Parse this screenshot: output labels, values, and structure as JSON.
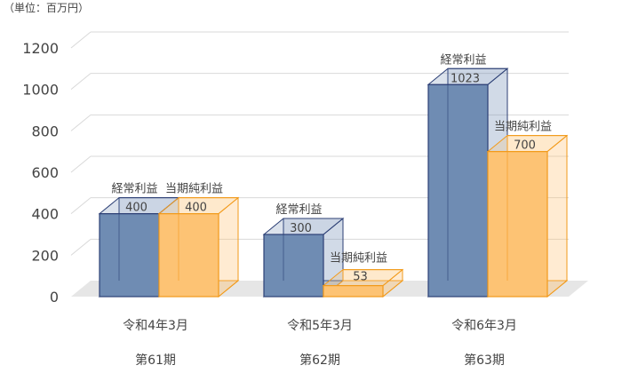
{
  "chart_data": {
    "type": "bar",
    "unit_label": "（単位：百万円）",
    "y_ticks": [
      "0",
      "200",
      "400",
      "600",
      "800",
      "1000",
      "1200"
    ],
    "ylim": [
      0,
      1200
    ],
    "grid": true,
    "categories": [
      {
        "line1": "令和4年3月",
        "line2": "第61期"
      },
      {
        "line1": "令和5年3月",
        "line2": "第62期"
      },
      {
        "line1": "令和6年3月",
        "line2": "第63期"
      }
    ],
    "series": [
      {
        "name": "経常利益",
        "color": "#6f8cb3",
        "edge": "#2c3f75",
        "values": [
          400,
          300,
          1023
        ],
        "value_labels": [
          "400",
          "300",
          "1023"
        ]
      },
      {
        "name": "当期純利益",
        "color": "#fdc374",
        "edge": "#f29a1a",
        "values": [
          400,
          53,
          700
        ],
        "value_labels": [
          "400",
          "53",
          "700"
        ]
      }
    ]
  }
}
